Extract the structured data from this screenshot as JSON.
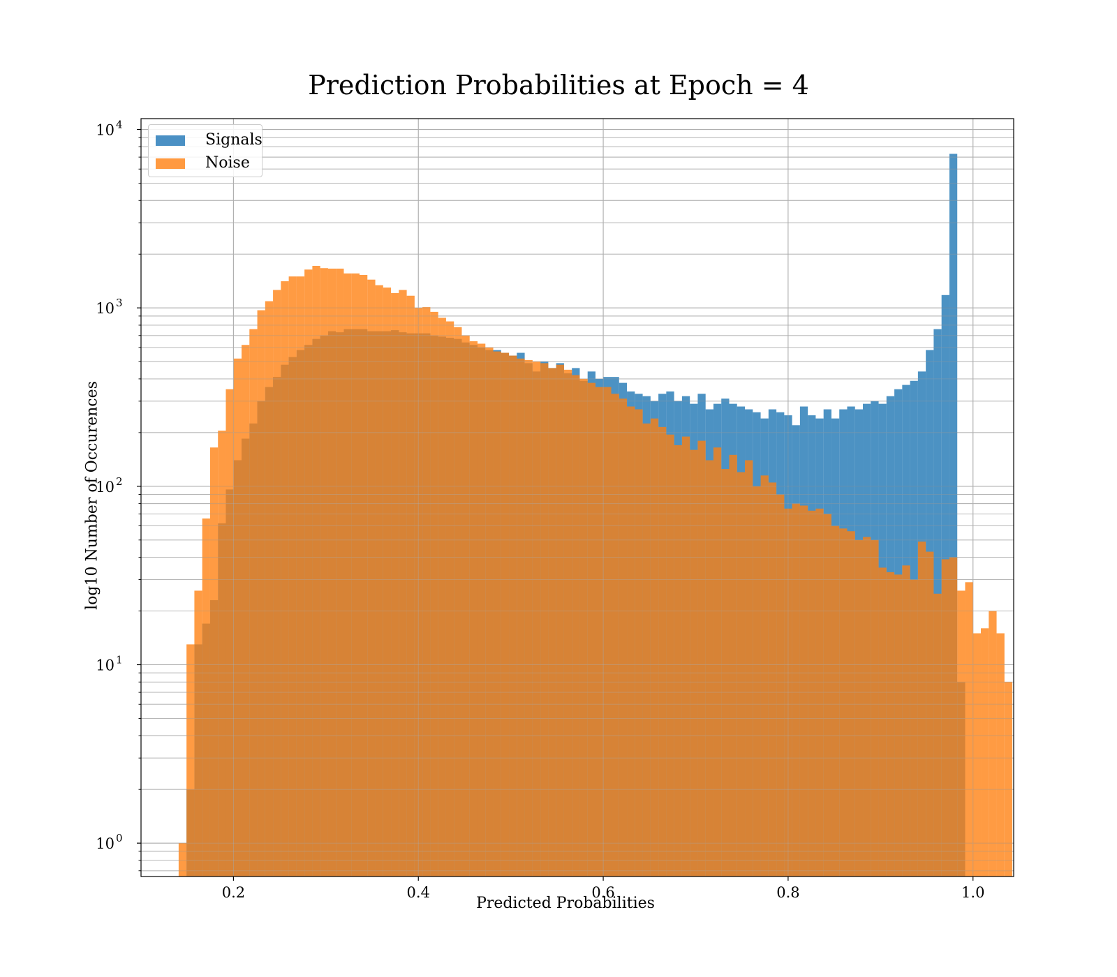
{
  "chart_data": {
    "type": "bar",
    "title": "Prediction Probabilities at Epoch = 4",
    "xlabel": "Predicted Probabilities",
    "ylabel": "log10 Number of Occurences",
    "yscale": "log",
    "xlim": [
      0.1,
      1.044
    ],
    "ylim": [
      0.65,
      11500
    ],
    "xticks": [
      0.2,
      0.4,
      0.6,
      0.8,
      1.0
    ],
    "xtick_labels": [
      "0.2",
      "0.4",
      "0.6",
      "0.8",
      "1.0"
    ],
    "yticks": [
      1,
      10,
      100,
      1000,
      10000
    ],
    "ytick_labels": [
      {
        "base": "10",
        "exp": "0"
      },
      {
        "base": "10",
        "exp": "1"
      },
      {
        "base": "10",
        "exp": "2"
      },
      {
        "base": "10",
        "exp": "3"
      },
      {
        "base": "10",
        "exp": "4"
      }
    ],
    "grid": true,
    "legend_position": "top-left",
    "series": [
      {
        "name": "Signals",
        "color": "#1f77b4",
        "bin_start": 0.1492,
        "bin_width": 0.008508,
        "values": [
          2,
          13,
          17,
          23,
          62,
          96,
          140,
          185,
          225,
          300,
          360,
          410,
          480,
          530,
          580,
          620,
          670,
          700,
          740,
          730,
          760,
          760,
          760,
          740,
          740,
          740,
          750,
          730,
          720,
          720,
          720,
          700,
          690,
          680,
          670,
          640,
          620,
          600,
          580,
          580,
          560,
          540,
          560,
          490,
          440,
          500,
          460,
          490,
          430,
          460,
          390,
          440,
          400,
          410,
          410,
          380,
          340,
          330,
          320,
          300,
          330,
          340,
          300,
          320,
          290,
          330,
          270,
          290,
          310,
          290,
          280,
          270,
          260,
          240,
          270,
          260,
          250,
          220,
          280,
          250,
          240,
          270,
          240,
          270,
          280,
          270,
          290,
          300,
          290,
          320,
          350,
          370,
          390,
          440,
          580,
          760,
          1180,
          7300,
          8
        ]
      },
      {
        "name": "Noise",
        "color": "#ff7f0e",
        "bin_start": 0.1407,
        "bin_width": 0.008508,
        "values": [
          1,
          13,
          26,
          66,
          165,
          205,
          350,
          520,
          620,
          760,
          970,
          1090,
          1260,
          1410,
          1500,
          1500,
          1640,
          1720,
          1670,
          1660,
          1660,
          1560,
          1560,
          1530,
          1440,
          1340,
          1300,
          1210,
          1260,
          1170,
          1000,
          1010,
          950,
          880,
          840,
          780,
          700,
          650,
          630,
          600,
          570,
          560,
          540,
          520,
          510,
          500,
          490,
          460,
          480,
          450,
          420,
          400,
          380,
          360,
          360,
          330,
          310,
          280,
          270,
          225,
          240,
          215,
          195,
          170,
          190,
          160,
          180,
          140,
          165,
          125,
          150,
          120,
          140,
          100,
          115,
          105,
          90,
          75,
          80,
          78,
          73,
          75,
          70,
          60,
          58,
          56,
          50,
          52,
          50,
          35,
          33,
          32,
          36,
          30,
          49,
          43,
          25,
          39,
          40,
          26,
          29,
          15,
          16,
          20,
          15,
          8
        ]
      }
    ]
  }
}
